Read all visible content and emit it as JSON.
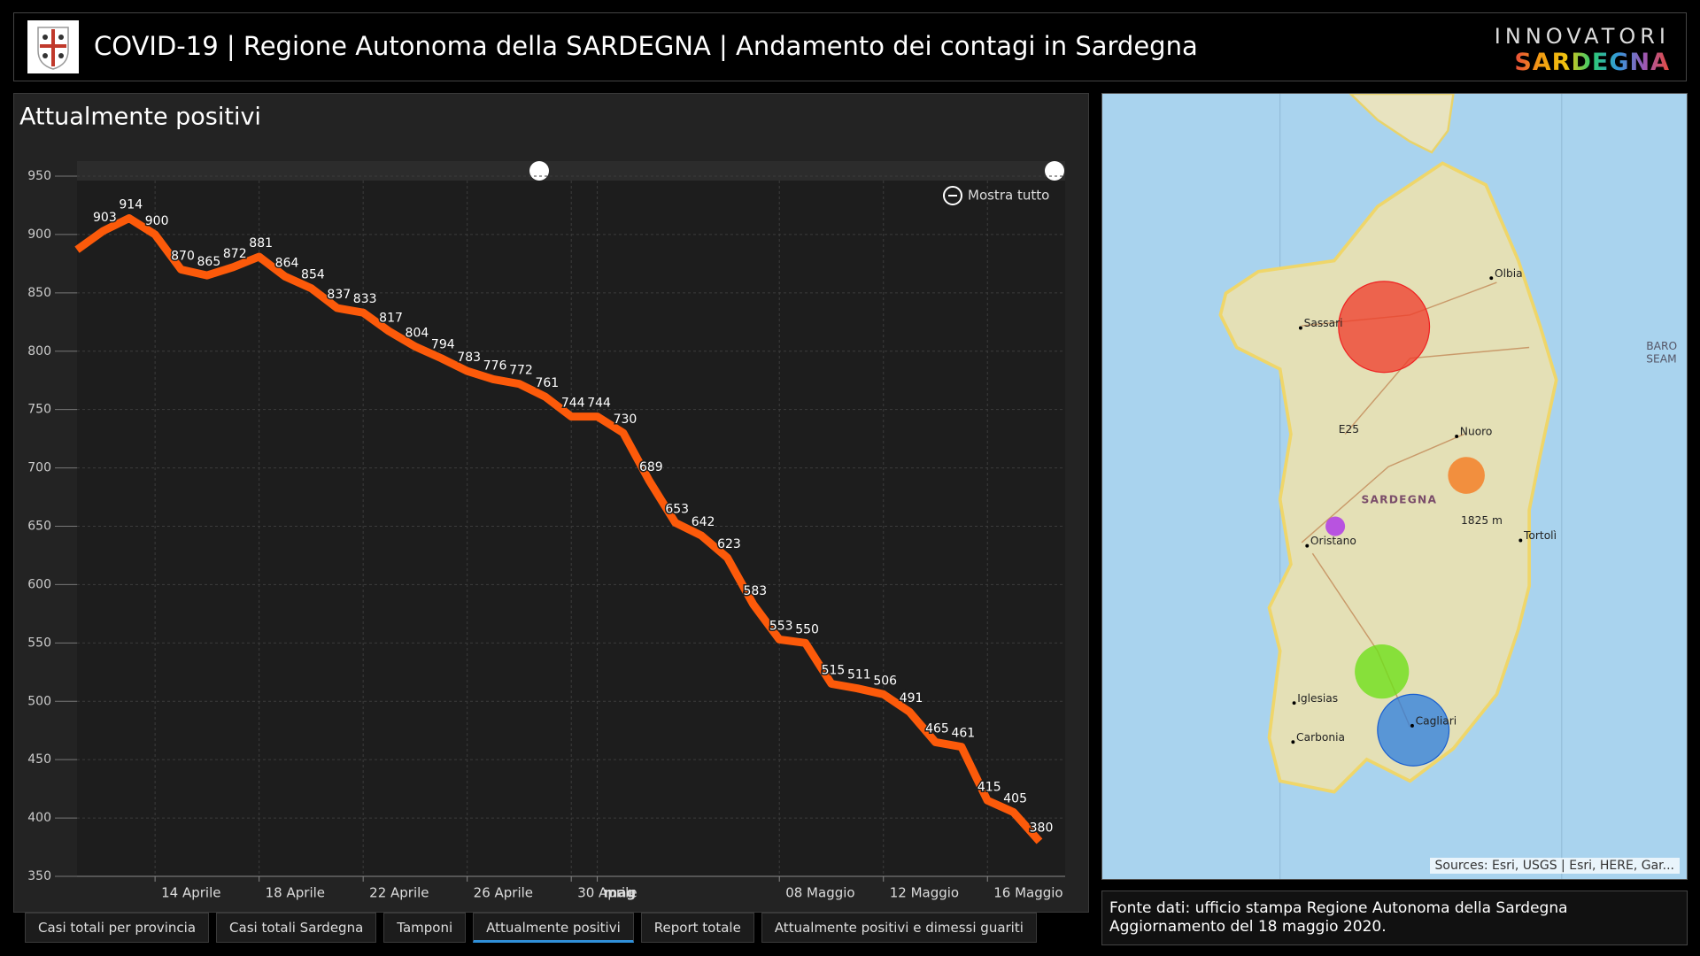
{
  "header": {
    "title": "COVID-19 | Regione Autonoma della SARDEGNA | Andamento dei contagi in Sardegna",
    "brand_top": "INNOVATORI",
    "brand_bottom": "SARDEGNA"
  },
  "chart_data": {
    "type": "line",
    "title": "Attualmente positivi",
    "x": [
      "04-11",
      "04-12",
      "04-13",
      "04-14",
      "04-15",
      "04-16",
      "04-17",
      "04-18",
      "04-19",
      "04-20",
      "04-21",
      "04-22",
      "04-23",
      "04-24",
      "04-25",
      "04-26",
      "04-27",
      "04-28",
      "04-29",
      "04-30",
      "05-01",
      "05-02",
      "05-03",
      "05-04",
      "05-05",
      "05-06",
      "05-07",
      "05-08",
      "05-09",
      "05-10",
      "05-11",
      "05-12",
      "05-13",
      "05-14",
      "05-15",
      "05-16",
      "05-17",
      "05-18"
    ],
    "values": [
      887,
      903,
      914,
      900,
      870,
      865,
      872,
      881,
      864,
      854,
      837,
      833,
      817,
      804,
      794,
      783,
      776,
      772,
      761,
      744,
      744,
      730,
      689,
      653,
      642,
      623,
      583,
      553,
      550,
      515,
      511,
      506,
      491,
      465,
      461,
      415,
      405,
      380
    ],
    "value_labels": [
      null,
      "903",
      "914",
      "900",
      "870",
      "865",
      "872",
      "881",
      "864",
      "854",
      "837",
      "833",
      "817",
      "804",
      "794",
      "783",
      "776",
      "772",
      "761",
      "744",
      "744",
      "730",
      "689",
      "653",
      "642",
      "623",
      "583",
      "553",
      "550",
      "515",
      "511",
      "506",
      "491",
      "465",
      "461",
      "415",
      "405",
      "380"
    ],
    "color": "#fc5a0a",
    "ylim": [
      350,
      950
    ],
    "yticks": [
      350,
      400,
      450,
      500,
      550,
      600,
      650,
      700,
      750,
      800,
      850,
      900,
      950
    ],
    "xlim": [
      "04-11",
      "05-18"
    ],
    "xticks": [
      {
        "value": "04-14",
        "label": "14 Aprile"
      },
      {
        "value": "04-18",
        "label": "18 Aprile"
      },
      {
        "value": "04-22",
        "label": "22 Aprile"
      },
      {
        "value": "04-26",
        "label": "26 Aprile"
      },
      {
        "value": "04-30",
        "label": "30 Aprile"
      },
      {
        "value": "05-01",
        "label": "mag"
      },
      {
        "value": "05-08",
        "label": "08 Maggio"
      },
      {
        "value": "05-12",
        "label": "12 Maggio"
      },
      {
        "value": "05-16",
        "label": "16 Maggio"
      }
    ],
    "grid": true
  },
  "chart_controls": {
    "zoom_reset": "Mostra tutto"
  },
  "map": {
    "labels": [
      "Olbia",
      "Sassari",
      "Nuoro",
      "SARDEGNA",
      "Oristano",
      "Tortolì",
      "1825 m",
      "E25",
      "Iglesias",
      "Cagliari",
      "Carbonia",
      "BARO",
      "SEAM"
    ],
    "attribution": "Sources: Esri, USGS | Esri, HERE, Gar..."
  },
  "footer": {
    "line1": "Fonte dati: ufficio stampa Regione Autonoma della Sardegna",
    "line2": "Aggiornamento del 18 maggio 2020."
  },
  "tabs": [
    "Casi totali per provincia",
    "Casi totali Sardegna",
    "Tamponi",
    "Attualmente positivi",
    "Report totale",
    "Attualmente positivi e dimessi guariti"
  ]
}
